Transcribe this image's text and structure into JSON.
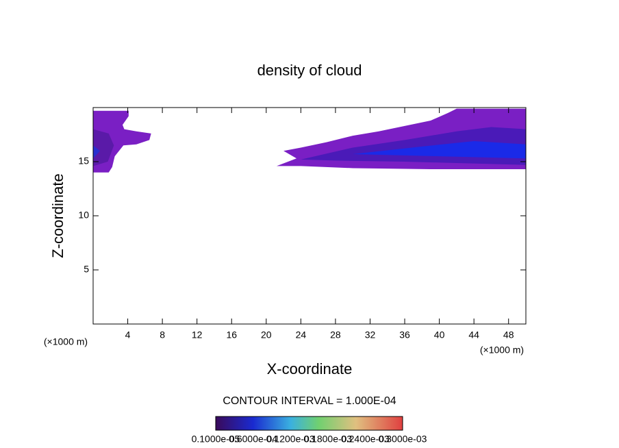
{
  "chart_data": {
    "type": "contour",
    "title": "density of cloud",
    "x_label": "X-coordinate",
    "y_label": "Z-coordinate",
    "x_unit": "(×1000 m)",
    "y_unit": "(×1000 m)",
    "xlim": [
      0,
      50
    ],
    "ylim": [
      0,
      20
    ],
    "xticks": [
      4,
      8,
      12,
      16,
      20,
      24,
      28,
      32,
      36,
      40,
      44,
      48
    ],
    "yticks": [
      5,
      10,
      15
    ],
    "contour_interval": "CONTOUR INTERVAL = 1.000E-04",
    "colorbar_labels": [
      "0.1000e-05",
      "0.6000e-04",
      "0.1200e-03",
      "0.1800e-03",
      "0.2400e-03",
      "0.3000e-03"
    ],
    "regions": [
      {
        "color": "#7a1fc4",
        "points": [
          [
            0,
            19.7
          ],
          [
            4.1,
            19.7
          ],
          [
            4.1,
            19.2
          ],
          [
            3.4,
            18.4
          ],
          [
            3.6,
            18.0
          ],
          [
            5,
            17.8
          ],
          [
            6.7,
            17.6
          ],
          [
            6.5,
            17.0
          ],
          [
            5,
            16.6
          ],
          [
            3.5,
            16.5
          ],
          [
            2.5,
            15.5
          ],
          [
            2.2,
            14.5
          ],
          [
            1.8,
            14.0
          ],
          [
            0,
            14.0
          ]
        ]
      },
      {
        "color": "#5a1aa8",
        "points": [
          [
            0,
            18
          ],
          [
            1.8,
            17.6
          ],
          [
            2.4,
            16.5
          ],
          [
            1.7,
            15
          ],
          [
            0,
            14.6
          ]
        ]
      },
      {
        "color": "#2a2fd0",
        "points": [
          [
            0,
            16.5
          ],
          [
            0.8,
            16
          ],
          [
            0,
            15.3
          ]
        ]
      },
      {
        "color": "#7a1fc4",
        "points": [
          [
            21.2,
            14.6
          ],
          [
            23.5,
            15.3
          ],
          [
            22,
            16.0
          ],
          [
            24,
            16.3
          ],
          [
            27,
            16.8
          ],
          [
            30,
            17.4
          ],
          [
            33,
            17.8
          ],
          [
            36,
            18.3
          ],
          [
            39,
            18.8
          ],
          [
            41,
            19.5
          ],
          [
            42,
            19.9
          ],
          [
            50,
            19.9
          ],
          [
            50,
            14.3
          ],
          [
            39,
            14.3
          ],
          [
            30,
            14.4
          ],
          [
            24,
            14.6
          ]
        ]
      },
      {
        "color": "#4a1ab8",
        "points": [
          [
            24,
            15.2
          ],
          [
            30,
            16.3
          ],
          [
            36,
            17.0
          ],
          [
            42,
            17.8
          ],
          [
            46,
            18.2
          ],
          [
            50,
            18.0
          ],
          [
            50,
            14.7
          ],
          [
            36,
            15.0
          ],
          [
            28,
            15.1
          ]
        ]
      },
      {
        "color": "#1a2ae8",
        "points": [
          [
            30,
            15.7
          ],
          [
            38,
            16.4
          ],
          [
            44,
            16.9
          ],
          [
            50,
            16.6
          ],
          [
            50,
            15.3
          ],
          [
            40,
            15.5
          ]
        ]
      }
    ]
  }
}
